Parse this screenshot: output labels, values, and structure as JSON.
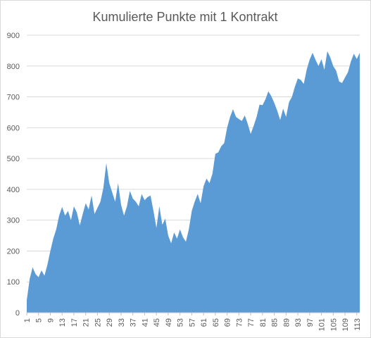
{
  "chart_data": {
    "type": "area",
    "title": "Kumulierte Punkte mit 1 Kontrakt",
    "xlabel": "",
    "ylabel": "",
    "ylim": [
      0,
      900
    ],
    "y_ticks": [
      0,
      100,
      200,
      300,
      400,
      500,
      600,
      700,
      800,
      900
    ],
    "x_ticks": [
      1,
      5,
      9,
      13,
      17,
      21,
      25,
      29,
      33,
      37,
      41,
      45,
      49,
      53,
      57,
      61,
      65,
      69,
      73,
      77,
      81,
      85,
      89,
      93,
      97,
      101,
      105,
      109,
      113
    ],
    "grid": true,
    "legend": "none",
    "colors": {
      "area": "#5b9bd5",
      "grid": "#d9d9d9",
      "axis": "#bfbfbf",
      "text": "#595959"
    },
    "series": [
      {
        "x": [
          1,
          2,
          3,
          4,
          5,
          6,
          7,
          8,
          9,
          10,
          11,
          12,
          13,
          14,
          15,
          16,
          17,
          18,
          19,
          20,
          21,
          22,
          23,
          24,
          25,
          26,
          27,
          28,
          29,
          30,
          31,
          32,
          33,
          34,
          35,
          36,
          37,
          38,
          39,
          40,
          41,
          42,
          43,
          44,
          45,
          46,
          47,
          48,
          49,
          50,
          51,
          52,
          53,
          54,
          55,
          56,
          57,
          58,
          59,
          60,
          61,
          62,
          63,
          64,
          65,
          66,
          67,
          68,
          69,
          70,
          71,
          72,
          73,
          74,
          75,
          76,
          77,
          78,
          79,
          80,
          81,
          82,
          83,
          84,
          85,
          86,
          87,
          88,
          89,
          90,
          91,
          92,
          93,
          94,
          95,
          96,
          97,
          98,
          99,
          100,
          101,
          102,
          103,
          104,
          105,
          106,
          107,
          108,
          109,
          110,
          111,
          112,
          113,
          114
        ],
        "values": [
          40,
          110,
          147,
          125,
          115,
          137,
          120,
          155,
          200,
          240,
          270,
          315,
          343,
          315,
          330,
          300,
          345,
          325,
          283,
          320,
          355,
          335,
          380,
          320,
          340,
          360,
          405,
          485,
          420,
          390,
          360,
          420,
          350,
          315,
          345,
          395,
          370,
          360,
          345,
          385,
          365,
          375,
          380,
          330,
          275,
          345,
          285,
          305,
          250,
          225,
          260,
          240,
          270,
          245,
          230,
          270,
          330,
          360,
          385,
          355,
          410,
          435,
          420,
          450,
          515,
          520,
          540,
          550,
          600,
          635,
          660,
          635,
          628,
          622,
          640,
          612,
          580,
          606,
          635,
          675,
          673,
          692,
          718,
          702,
          680,
          655,
          625,
          662,
          635,
          683,
          700,
          733,
          760,
          755,
          742,
          788,
          821,
          843,
          820,
          800,
          822,
          788,
          848,
          828,
          800,
          785,
          750,
          745,
          763,
          780,
          815,
          840,
          823,
          843
        ]
      }
    ]
  }
}
